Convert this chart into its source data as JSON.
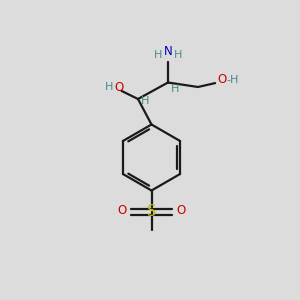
{
  "bg_color": "#dcdcdc",
  "bond_color": "#1a1a1a",
  "N_color": "#0000bb",
  "O_color": "#cc0000",
  "S_color": "#bbbb00",
  "H_color": "#4a8a8a",
  "line_width": 1.6,
  "figsize": [
    3.0,
    3.0
  ],
  "dpi": 100,
  "xlim": [
    0,
    10
  ],
  "ylim": [
    0,
    10
  ]
}
